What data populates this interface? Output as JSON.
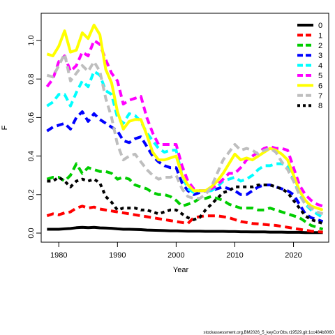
{
  "chart_data": {
    "type": "line",
    "title": "",
    "xlabel": "Year",
    "ylabel": "F",
    "xlim": [
      1977,
      2026
    ],
    "ylim": [
      0,
      1.1
    ],
    "x_ticks": [
      "1980",
      "1990",
      "2000",
      "2010",
      "2020"
    ],
    "y_ticks": [
      "0.0",
      "0.2",
      "0.4",
      "0.6",
      "0.8",
      "1.0"
    ],
    "grid": false,
    "legend_position": "top-right",
    "footer_text": "stockassessment.org,BM2026_5_keyCorObs,r19529,git:1cc484b8060",
    "x": [
      1978,
      1979,
      1980,
      1981,
      1982,
      1983,
      1984,
      1985,
      1986,
      1987,
      1988,
      1989,
      1990,
      1991,
      1992,
      1993,
      1994,
      1995,
      1996,
      1997,
      1998,
      1999,
      2000,
      2001,
      2002,
      2003,
      2004,
      2005,
      2006,
      2007,
      2008,
      2009,
      2010,
      2011,
      2012,
      2013,
      2014,
      2015,
      2016,
      2017,
      2018,
      2019,
      2020,
      2021,
      2022,
      2023,
      2024,
      2025
    ],
    "series": [
      {
        "name": "0",
        "color": "#000000",
        "dash": "solid",
        "values": [
          0.02,
          0.02,
          0.02,
          0.022,
          0.024,
          0.028,
          0.03,
          0.028,
          0.03,
          0.027,
          0.026,
          0.025,
          0.022,
          0.02,
          0.02,
          0.019,
          0.018,
          0.016,
          0.015,
          0.014,
          0.013,
          0.012,
          0.012,
          0.011,
          0.01,
          0.01,
          0.01,
          0.009,
          0.009,
          0.009,
          0.009,
          0.008,
          0.008,
          0.007,
          0.007,
          0.006,
          0.006,
          0.006,
          0.005,
          0.005,
          0.005,
          0.004,
          0.004,
          0.004,
          0.003,
          0.003,
          0.003,
          0.003
        ]
      },
      {
        "name": "1",
        "color": "#ff0000",
        "dash": "dashed",
        "values": [
          0.09,
          0.1,
          0.095,
          0.105,
          0.11,
          0.13,
          0.14,
          0.13,
          0.135,
          0.125,
          0.12,
          0.115,
          0.11,
          0.105,
          0.1,
          0.095,
          0.09,
          0.085,
          0.08,
          0.075,
          0.07,
          0.065,
          0.06,
          0.055,
          0.05,
          0.08,
          0.085,
          0.09,
          0.09,
          0.09,
          0.085,
          0.08,
          0.07,
          0.06,
          0.055,
          0.05,
          0.048,
          0.045,
          0.042,
          0.04,
          0.035,
          0.03,
          0.025,
          0.02,
          0.015,
          0.01,
          0.008,
          0.005
        ]
      },
      {
        "name": "2",
        "color": "#00cd00",
        "dash": "dashed",
        "values": [
          0.28,
          0.29,
          0.29,
          0.27,
          0.3,
          0.36,
          0.31,
          0.34,
          0.33,
          0.32,
          0.32,
          0.31,
          0.28,
          0.29,
          0.28,
          0.25,
          0.24,
          0.23,
          0.21,
          0.2,
          0.2,
          0.19,
          0.17,
          0.14,
          0.15,
          0.16,
          0.18,
          0.18,
          0.19,
          0.18,
          0.17,
          0.15,
          0.14,
          0.13,
          0.13,
          0.13,
          0.12,
          0.12,
          0.13,
          0.12,
          0.11,
          0.1,
          0.09,
          0.08,
          0.06,
          0.04,
          0.03,
          0.02
        ]
      },
      {
        "name": "3",
        "color": "#0000ff",
        "dash": "dashed",
        "values": [
          0.53,
          0.55,
          0.56,
          0.57,
          0.54,
          0.6,
          0.63,
          0.58,
          0.62,
          0.59,
          0.57,
          0.55,
          0.53,
          0.48,
          0.47,
          0.49,
          0.5,
          0.45,
          0.4,
          0.37,
          0.35,
          0.34,
          0.34,
          0.26,
          0.22,
          0.2,
          0.21,
          0.22,
          0.22,
          0.23,
          0.24,
          0.23,
          0.22,
          0.2,
          0.2,
          0.22,
          0.24,
          0.25,
          0.25,
          0.24,
          0.23,
          0.22,
          0.2,
          0.15,
          0.1,
          0.08,
          0.07,
          0.06
        ]
      },
      {
        "name": "4",
        "color": "#00ffff",
        "dash": "dashed",
        "values": [
          0.66,
          0.68,
          0.72,
          0.72,
          0.66,
          0.73,
          0.79,
          0.76,
          0.84,
          0.82,
          0.74,
          0.72,
          0.6,
          0.57,
          0.62,
          0.61,
          0.58,
          0.52,
          0.48,
          0.44,
          0.42,
          0.43,
          0.43,
          0.3,
          0.23,
          0.21,
          0.22,
          0.22,
          0.22,
          0.24,
          0.27,
          0.28,
          0.29,
          0.27,
          0.28,
          0.3,
          0.33,
          0.35,
          0.35,
          0.36,
          0.36,
          0.35,
          0.28,
          0.2,
          0.15,
          0.12,
          0.1,
          0.08
        ]
      },
      {
        "name": "5",
        "color": "#ff00ff",
        "dash": "dashed",
        "values": [
          0.76,
          0.8,
          0.89,
          0.92,
          0.84,
          0.87,
          0.94,
          0.92,
          1.0,
          0.98,
          0.9,
          0.83,
          0.79,
          0.67,
          0.69,
          0.7,
          0.71,
          0.6,
          0.52,
          0.46,
          0.46,
          0.46,
          0.46,
          0.35,
          0.27,
          0.23,
          0.22,
          0.22,
          0.23,
          0.25,
          0.28,
          0.31,
          0.31,
          0.34,
          0.38,
          0.4,
          0.42,
          0.44,
          0.45,
          0.44,
          0.44,
          0.43,
          0.34,
          0.25,
          0.2,
          0.17,
          0.15,
          0.14
        ]
      },
      {
        "name": "6",
        "color": "#ffff00",
        "dash": "solid",
        "values": [
          0.93,
          0.92,
          0.97,
          1.05,
          0.94,
          0.95,
          1.04,
          1.01,
          1.08,
          1.03,
          0.85,
          0.78,
          0.63,
          0.54,
          0.58,
          0.59,
          0.59,
          0.51,
          0.42,
          0.38,
          0.38,
          0.39,
          0.4,
          0.3,
          0.25,
          0.22,
          0.22,
          0.22,
          0.24,
          0.27,
          0.31,
          0.36,
          0.41,
          0.38,
          0.39,
          0.38,
          0.4,
          0.42,
          0.44,
          0.43,
          0.41,
          0.38,
          0.3,
          0.22,
          0.17,
          0.14,
          0.13,
          0.12
        ]
      },
      {
        "name": "7",
        "color": "#bebebe",
        "dash": "dashed",
        "values": [
          0.82,
          0.81,
          0.87,
          0.93,
          0.79,
          0.83,
          0.87,
          0.84,
          0.89,
          0.84,
          0.7,
          0.6,
          0.46,
          0.38,
          0.4,
          0.41,
          0.37,
          0.33,
          0.3,
          0.28,
          0.29,
          0.29,
          0.3,
          0.23,
          0.19,
          0.18,
          0.18,
          0.2,
          0.24,
          0.31,
          0.38,
          0.42,
          0.46,
          0.43,
          0.44,
          0.43,
          0.41,
          0.43,
          0.44,
          0.42,
          0.37,
          0.33,
          0.27,
          0.2,
          0.15,
          0.13,
          0.11,
          0.1
        ]
      },
      {
        "name": "8",
        "color": "#000000",
        "dash": "dotted",
        "values": [
          0.27,
          0.27,
          0.29,
          0.27,
          0.24,
          0.27,
          0.28,
          0.27,
          0.28,
          0.26,
          0.19,
          0.16,
          0.12,
          0.13,
          0.13,
          0.13,
          0.12,
          0.12,
          0.11,
          0.1,
          0.11,
          0.12,
          0.12,
          0.1,
          0.08,
          0.07,
          0.08,
          0.12,
          0.15,
          0.18,
          0.21,
          0.22,
          0.24,
          0.24,
          0.24,
          0.24,
          0.25,
          0.25,
          0.25,
          0.24,
          0.23,
          0.21,
          0.17,
          0.13,
          0.09,
          0.07,
          0.06,
          0.05
        ]
      }
    ]
  }
}
